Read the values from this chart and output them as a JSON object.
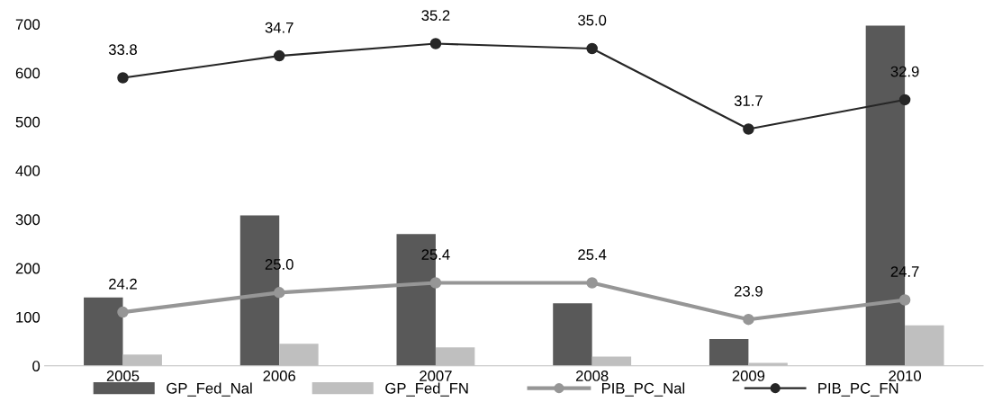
{
  "chart_data": {
    "type": "bar",
    "categories": [
      "2005",
      "2006",
      "2007",
      "2008",
      "2009",
      "2010"
    ],
    "series": [
      {
        "name": "GP_Fed_Nal",
        "color": "#595959",
        "values": [
          140,
          308,
          270,
          128,
          55,
          697
        ]
      },
      {
        "name": "GP_Fed_FN",
        "color": "#bfbfbf",
        "values": [
          23,
          45,
          38,
          19,
          6,
          83
        ]
      },
      {
        "name": "PIB_PC_Nal",
        "type": "line",
        "axis": "y2",
        "color": "#969696",
        "marker": "circle",
        "value_labels": [
          "24.2",
          "25.0",
          "25.4",
          "25.4",
          "23.9",
          "24.7"
        ],
        "values": [
          24.2,
          25.0,
          25.4,
          25.4,
          23.9,
          24.7
        ]
      },
      {
        "name": "PIB_PC_FN",
        "type": "line",
        "axis": "y2",
        "color": "#262626",
        "marker": "circle",
        "value_labels": [
          "33.8",
          "34.7",
          "35.2",
          "35.0",
          "31.7",
          "32.9"
        ],
        "values": [
          33.8,
          34.7,
          35.2,
          35.0,
          31.7,
          32.9
        ]
      }
    ],
    "ylim": [
      0,
      700
    ],
    "yticks": [
      0,
      100,
      200,
      300,
      400,
      500,
      600,
      700
    ],
    "y2lim": [
      22,
      36
    ],
    "grid": false,
    "legend": "bottom"
  }
}
